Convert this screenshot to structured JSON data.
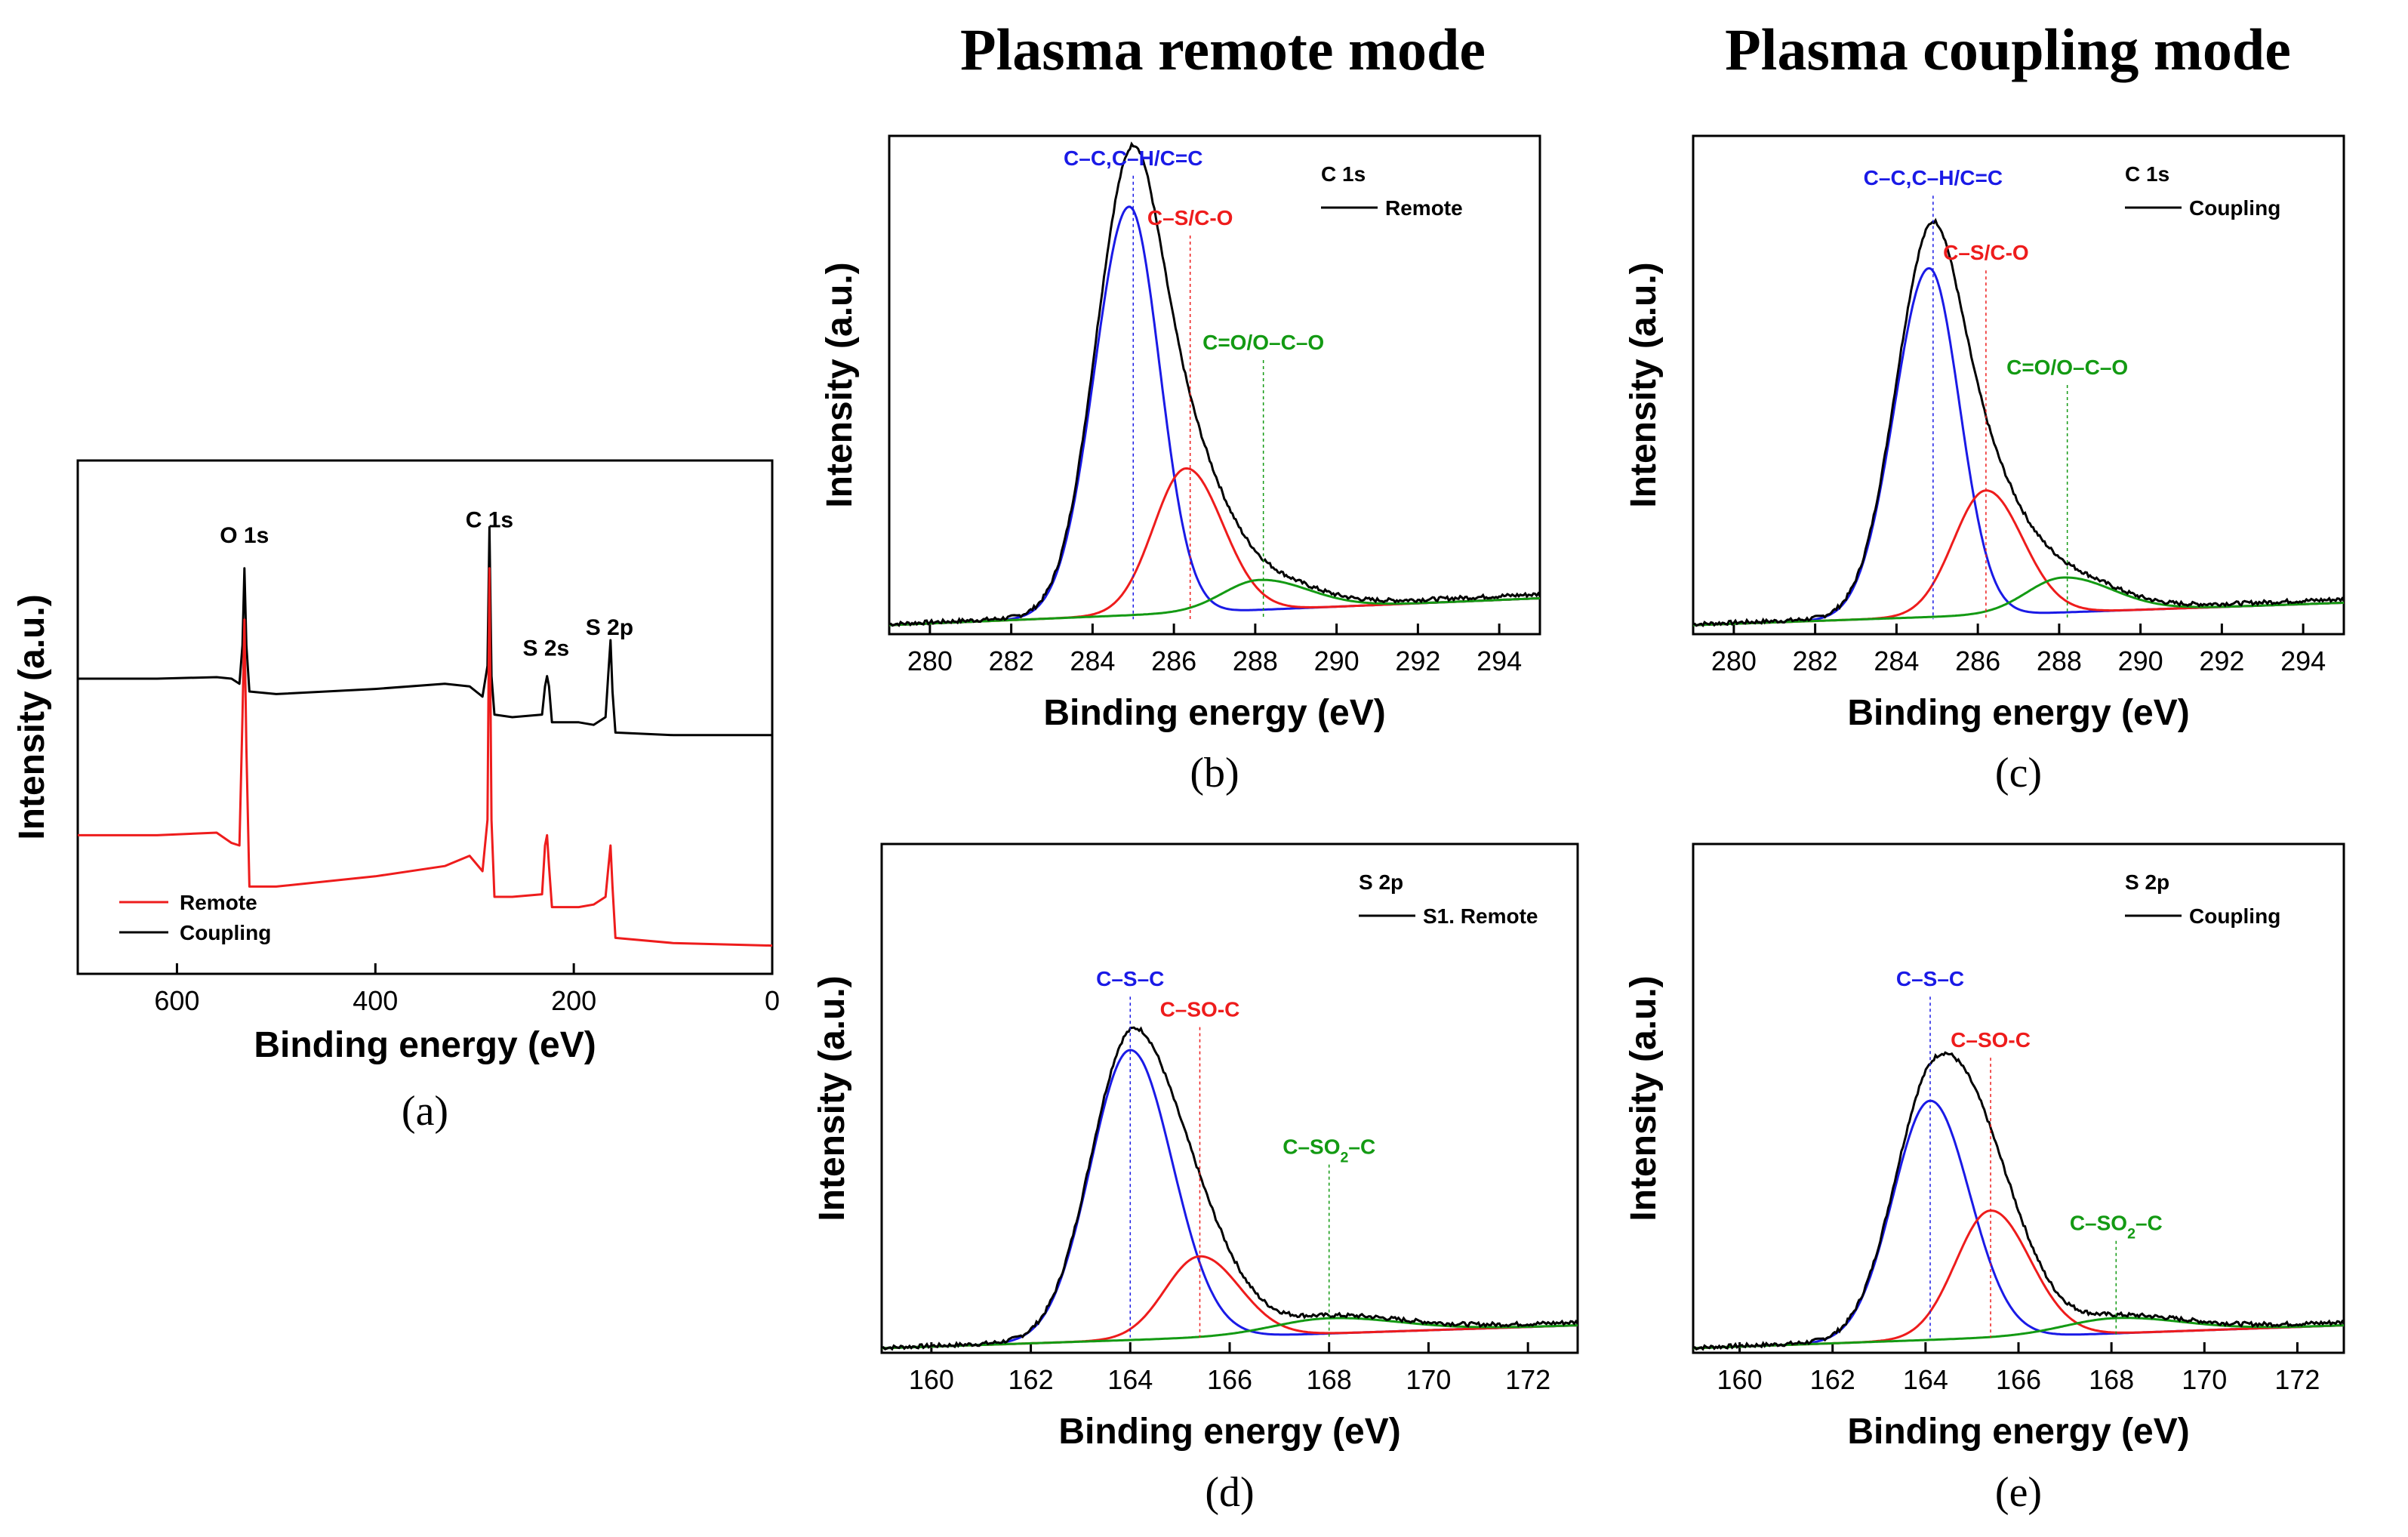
{
  "headings": {
    "remote": "Plasma remote mode",
    "coupling": "Plasma coupling mode"
  },
  "colors": {
    "black": "#000000",
    "red": "#ee1c1c",
    "blue": "#1a1ae6",
    "green": "#139a13"
  },
  "chart_data": [
    {
      "id": "a",
      "type": "line",
      "caption": "(a)",
      "xlabel": "Binding energy (eV)",
      "ylabel": "Intensity (a.u.)",
      "xlim": [
        700,
        0
      ],
      "ylim": [
        0,
        100
      ],
      "xticks": [
        600,
        400,
        200,
        0
      ],
      "peak_labels": [
        {
          "text": "O 1s",
          "x": 532,
          "y": 84
        },
        {
          "text": "C 1s",
          "x": 285,
          "y": 87
        },
        {
          "text": "S 2s",
          "x": 228,
          "y": 62
        },
        {
          "text": "S 2p",
          "x": 164,
          "y": 66
        }
      ],
      "legend": [
        {
          "name": "Remote",
          "color": "#ee1c1c"
        },
        {
          "name": "Coupling",
          "color": "#000000"
        }
      ],
      "series": [
        {
          "name": "Coupling",
          "color": "#000000",
          "x": [
            700,
            620,
            560,
            545,
            537,
            534,
            532,
            530,
            527,
            500,
            400,
            330,
            305,
            292,
            287,
            285,
            283,
            280,
            262,
            232,
            229,
            227,
            225,
            222,
            195,
            180,
            168,
            165,
            163,
            161,
            158,
            100,
            0
          ],
          "y": [
            57.5,
            57.5,
            57.8,
            57.5,
            56.5,
            64,
            79,
            64,
            55,
            54.5,
            55.5,
            56.5,
            56,
            54,
            60,
            87,
            58,
            50.5,
            50,
            50.5,
            56,
            58,
            56,
            49,
            49,
            48.5,
            50,
            59,
            65,
            55,
            47,
            46.5,
            46.5
          ]
        },
        {
          "name": "Remote",
          "color": "#ee1c1c",
          "x": [
            700,
            620,
            560,
            545,
            537,
            534,
            532,
            530,
            527,
            500,
            400,
            330,
            305,
            292,
            287,
            285,
            283,
            280,
            262,
            232,
            229,
            227,
            225,
            222,
            195,
            180,
            168,
            165,
            163,
            161,
            158,
            100,
            0
          ],
          "y": [
            27,
            27,
            27.5,
            25.5,
            25,
            50,
            69,
            44,
            17,
            17,
            19,
            21,
            23,
            20,
            30,
            79,
            30,
            15,
            15,
            15.5,
            25,
            27,
            21,
            13,
            13,
            13.5,
            15,
            21,
            25,
            17,
            7,
            6,
            5.5
          ]
        }
      ]
    },
    {
      "id": "b",
      "type": "line",
      "caption": "(b)",
      "xlabel": "Binding energy (eV)",
      "ylabel": "Intensity (a.u.)",
      "xlim": [
        279,
        295
      ],
      "ylim": [
        0,
        100
      ],
      "xticks": [
        280,
        282,
        284,
        286,
        288,
        290,
        292,
        294
      ],
      "legend": {
        "title": "C 1s",
        "entry": "Remote"
      },
      "components": [
        {
          "name": "envelope",
          "label": "",
          "color": "#000000",
          "center": 285.0,
          "peak": 94,
          "baseline": [
            2,
            8
          ]
        },
        {
          "name": "C–C,C–H/C=C",
          "label": "C–C,C–H/C=C",
          "color": "#1a1ae6",
          "center": 284.9,
          "sigma_l": 0.85,
          "sigma_r": 0.75,
          "height": 82
        },
        {
          "name": "C–S/C-O",
          "label": "C–S/C-O",
          "color": "#ee1c1c",
          "center": 286.3,
          "sigma_l": 0.8,
          "sigma_r": 0.9,
          "height": 29
        },
        {
          "name": "C=O/O–C–O",
          "label": "C=O/O–C–O",
          "color": "#139a13",
          "center": 288.1,
          "sigma_l": 0.9,
          "sigma_r": 1.2,
          "height": 6
        }
      ],
      "marker_lines": [
        {
          "x": 285.0,
          "top": 92,
          "color": "#1a1ae6"
        },
        {
          "x": 286.4,
          "top": 80,
          "color": "#ee1c1c"
        },
        {
          "x": 288.2,
          "top": 55,
          "color": "#139a13"
        }
      ]
    },
    {
      "id": "c",
      "type": "line",
      "caption": "(c)",
      "xlabel": "Binding energy (eV)",
      "ylabel": "Intensity (a.u.)",
      "xlim": [
        279,
        295
      ],
      "ylim": [
        0,
        100
      ],
      "xticks": [
        280,
        282,
        284,
        286,
        288,
        290,
        292,
        294
      ],
      "legend": {
        "title": "C 1s",
        "entry": "Coupling"
      },
      "components": [
        {
          "name": "envelope",
          "label": "",
          "color": "#000000",
          "center": 285.0,
          "peak": 79,
          "baseline": [
            2,
            7
          ]
        },
        {
          "name": "C–C,C–H/C=C",
          "label": "C–C,C–H/C=C",
          "color": "#1a1ae6",
          "center": 284.8,
          "sigma_l": 0.85,
          "sigma_r": 0.75,
          "height": 70
        },
        {
          "name": "C–S/C-O",
          "label": "C–S/C-O",
          "color": "#ee1c1c",
          "center": 286.2,
          "sigma_l": 0.8,
          "sigma_r": 0.9,
          "height": 25
        },
        {
          "name": "C=O/O–C–O",
          "label": "C=O/O–C–O",
          "color": "#139a13",
          "center": 288.1,
          "sigma_l": 0.9,
          "sigma_r": 1.2,
          "height": 7
        }
      ],
      "marker_lines": [
        {
          "x": 284.9,
          "top": 88,
          "color": "#1a1ae6"
        },
        {
          "x": 286.2,
          "top": 73,
          "color": "#ee1c1c"
        },
        {
          "x": 288.2,
          "top": 50,
          "color": "#139a13"
        }
      ]
    },
    {
      "id": "d",
      "type": "line",
      "caption": "(d)",
      "xlabel": "Binding energy (eV)",
      "ylabel": "Intensity (a.u.)",
      "xlim": [
        159,
        173
      ],
      "ylim": [
        0,
        100
      ],
      "xticks": [
        160,
        162,
        164,
        166,
        168,
        170,
        172
      ],
      "legend": {
        "title": "S 2p",
        "entry": "S1. Remote"
      },
      "components": [
        {
          "name": "envelope",
          "label": "",
          "color": "#000000",
          "center": 164.0,
          "peak": 61,
          "baseline": [
            1,
            6
          ]
        },
        {
          "name": "C–S–C",
          "label": "C–S–C",
          "color": "#1a1ae6",
          "center": 164.0,
          "sigma_l": 0.8,
          "sigma_r": 0.85,
          "height": 57
        },
        {
          "name": "C–SO-C",
          "label": "C–SO-C",
          "color": "#ee1c1c",
          "center": 165.4,
          "sigma_l": 0.7,
          "sigma_r": 0.8,
          "height": 16
        },
        {
          "name": "C–SO₂–C",
          "label": "C–SO₂–C",
          "color": "#139a13",
          "center": 168.0,
          "sigma_l": 1.1,
          "sigma_r": 1.4,
          "height": 3
        }
      ],
      "marker_lines": [
        {
          "x": 164.0,
          "top": 70,
          "color": "#1a1ae6"
        },
        {
          "x": 165.4,
          "top": 64,
          "color": "#ee1c1c"
        },
        {
          "x": 168.0,
          "top": 37,
          "color": "#139a13"
        }
      ]
    },
    {
      "id": "e",
      "type": "line",
      "caption": "(e)",
      "xlabel": "Binding energy (eV)",
      "ylabel": "Intensity (a.u.)",
      "xlim": [
        159,
        173
      ],
      "ylim": [
        0,
        100
      ],
      "xticks": [
        160,
        162,
        164,
        166,
        168,
        170,
        172
      ],
      "legend": {
        "title": "S 2p",
        "entry": "Coupling"
      },
      "components": [
        {
          "name": "envelope",
          "label": "",
          "color": "#000000",
          "center": 164.1,
          "peak": 56,
          "baseline": [
            1,
            6
          ]
        },
        {
          "name": "C–S–C",
          "label": "C–S–C",
          "color": "#1a1ae6",
          "center": 164.1,
          "sigma_l": 0.8,
          "sigma_r": 0.85,
          "height": 47
        },
        {
          "name": "C–SO-C",
          "label": "C–SO-C",
          "color": "#ee1c1c",
          "center": 165.4,
          "sigma_l": 0.75,
          "sigma_r": 0.85,
          "height": 25
        },
        {
          "name": "C–SO₂–C",
          "label": "C–SO₂–C",
          "color": "#139a13",
          "center": 168.1,
          "sigma_l": 1.1,
          "sigma_r": 1.4,
          "height": 3
        }
      ],
      "marker_lines": [
        {
          "x": 164.1,
          "top": 70,
          "color": "#1a1ae6"
        },
        {
          "x": 165.4,
          "top": 58,
          "color": "#ee1c1c"
        },
        {
          "x": 168.1,
          "top": 22,
          "color": "#139a13"
        }
      ]
    }
  ]
}
